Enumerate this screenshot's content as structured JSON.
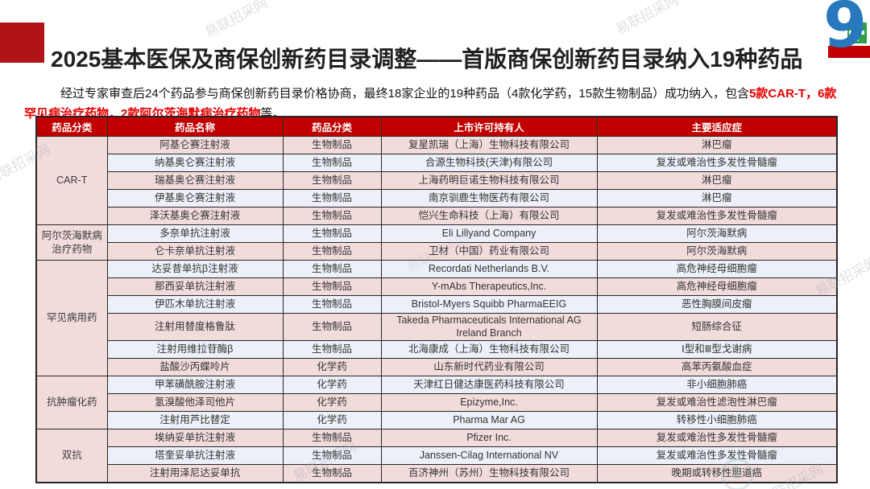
{
  "header": {
    "title": "2025基本医保及商保创新药目录调整——首版商保创新药目录纳入19种药品"
  },
  "logo": {
    "name": "yilian-zhaocai-logo",
    "glyph": "9",
    "blue": "#2878be",
    "green": "#2f9e44",
    "red": "#c00000"
  },
  "colors": {
    "header_bg": "#c00000",
    "title_block": "#b01318",
    "highlight": "#e60000",
    "row_pink": "#f2dcdb",
    "row_blue": "#edf0f8"
  },
  "intro": {
    "segments": [
      {
        "text": "经过专家审查后24个药品参与商保创新药目录价格协商，最终18家企业的19种药品（4款化学药，15款生物制品）成功纳入，包含",
        "red": false
      },
      {
        "text": "5款CAR-T，6款罕见病治疗药物，2款阿尔茨海默病治疗药物",
        "red": true
      },
      {
        "text": "等。",
        "red": false
      }
    ]
  },
  "table": {
    "columns": [
      "药品分类",
      "药品名称",
      "药品分类",
      "上市许可持有人",
      "主要适应症"
    ],
    "groups": [
      {
        "category": "CAR-T",
        "rows": [
          [
            "阿基仑赛注射液",
            "生物制品",
            "复星凯瑞（上海）生物科技有限公司",
            "淋巴瘤"
          ],
          [
            "纳基奥仑赛注射液",
            "生物制品",
            "合源生物科技(天津)有限公司",
            "复发或难治性多发性骨髓瘤"
          ],
          [
            "瑞基奥仑赛注射液",
            "生物制品",
            "上海药明巨诺生物科技有限公司",
            "淋巴瘤"
          ],
          [
            "伊基奥仑赛注射液",
            "生物制品",
            "南京驯鹿生物医药有限公司",
            "淋巴瘤"
          ],
          [
            "泽沃基奥仑赛注射液",
            "生物制品",
            "恺兴生命科技（上海）有限公司",
            "复发或难治性多发性骨髓瘤"
          ]
        ]
      },
      {
        "category": "阿尔茨海默病治疗药物",
        "rows": [
          [
            "多奈单抗注射液",
            "生物制品",
            "Eli Lillyand Company",
            "阿尔茨海默病"
          ],
          [
            "仑卡奈单抗注射液",
            "生物制品",
            "卫材（中国）药业有限公司",
            "阿尔茨海默病"
          ]
        ]
      },
      {
        "category": "罕见病用药",
        "rows": [
          [
            "达妥昔单抗β注射液",
            "生物制品",
            "Recordati Netherlands B.V.",
            "高危神经母细胞瘤"
          ],
          [
            "那西妥单抗注射液",
            "生物制品",
            "Y-mAbs Therapeutics,Inc.",
            "高危神经母细胞瘤"
          ],
          [
            "伊匹木单抗注射液",
            "生物制品",
            "Bristol-Myers Squibb PharmaEEIG",
            "恶性胸膜间皮瘤"
          ],
          [
            "注射用替度格鲁肽",
            "生物制品",
            "Takeda Pharmaceuticals International AG Ireland Branch",
            "短肠综合征"
          ],
          [
            "注射用维拉苷酶β",
            "生物制品",
            "北海康成（上海）生物科技有限公司",
            "Ⅰ型和Ⅲ型戈谢病"
          ],
          [
            "盐酸沙丙蝶呤片",
            "化学药",
            "山东新时代药业有限公司",
            "高苯丙氨酸血症"
          ]
        ]
      },
      {
        "category": "抗肿瘤化药",
        "rows": [
          [
            "甲苯磺酰胺注射液",
            "化学药",
            "天津红日健达康医药科技有限公司",
            "非小细胞肺癌"
          ],
          [
            "氢溴酸他泽司他片",
            "化学药",
            "Epizyme,Inc.",
            "复发或难治性滤泡性淋巴瘤"
          ],
          [
            "注射用芦比替定",
            "化学药",
            "Pharma Mar AG",
            "转移性小细胞肺癌"
          ]
        ]
      },
      {
        "category": "双抗",
        "rows": [
          [
            "埃纳妥单抗注射液",
            "生物制品",
            "Pfizer Inc.",
            "复发或难治性多发性骨髓瘤"
          ],
          [
            "塔奎妥单抗注射液",
            "生物制品",
            "Janssen-Cilag International NV",
            "复发或难治性多发性骨髓瘤"
          ],
          [
            "注射用泽尼达妥单抗",
            "生物制品",
            "百济神州（苏州）生物科技有限公司",
            "晚期或转移性胆道癌"
          ]
        ]
      }
    ]
  },
  "watermark": {
    "text": "易联招采网"
  }
}
